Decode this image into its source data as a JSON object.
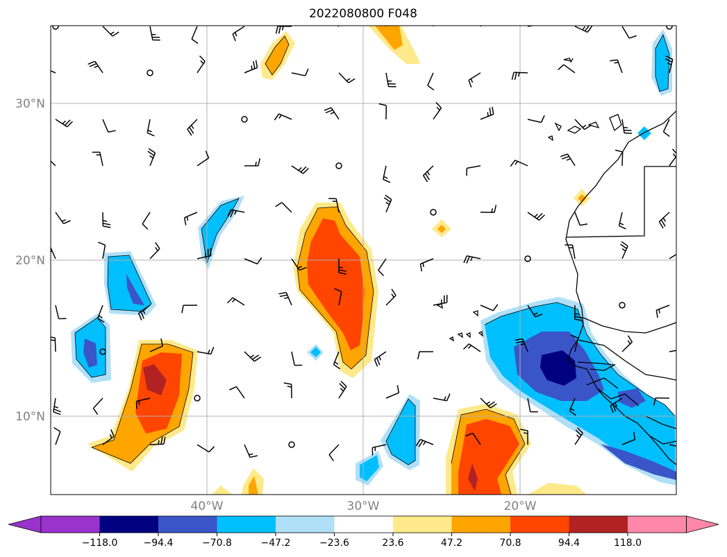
{
  "title": "2022080800 F048",
  "lat_labels": [
    "30°N",
    "20°N",
    "10°N"
  ],
  "lon_labels": [
    "40°W",
    "30°W",
    "20°W"
  ],
  "colorbar": {
    "ticks": [
      "−118.0",
      "−94.4",
      "−70.8",
      "−47.2",
      "−23.6",
      "23.6",
      "47.2",
      "70.8",
      "94.4",
      "118.0"
    ],
    "colors": [
      "#9933cc",
      "#000080",
      "#3a55c8",
      "#00bfff",
      "#b0e0f8",
      "#ffffff",
      "#ffe98a",
      "#ffa500",
      "#ff4500",
      "#b22222",
      "#ff88aa"
    ]
  },
  "map": {
    "extent_lon": [
      -50,
      -10
    ],
    "extent_lat": [
      5,
      35
    ],
    "gridlines": true
  }
}
